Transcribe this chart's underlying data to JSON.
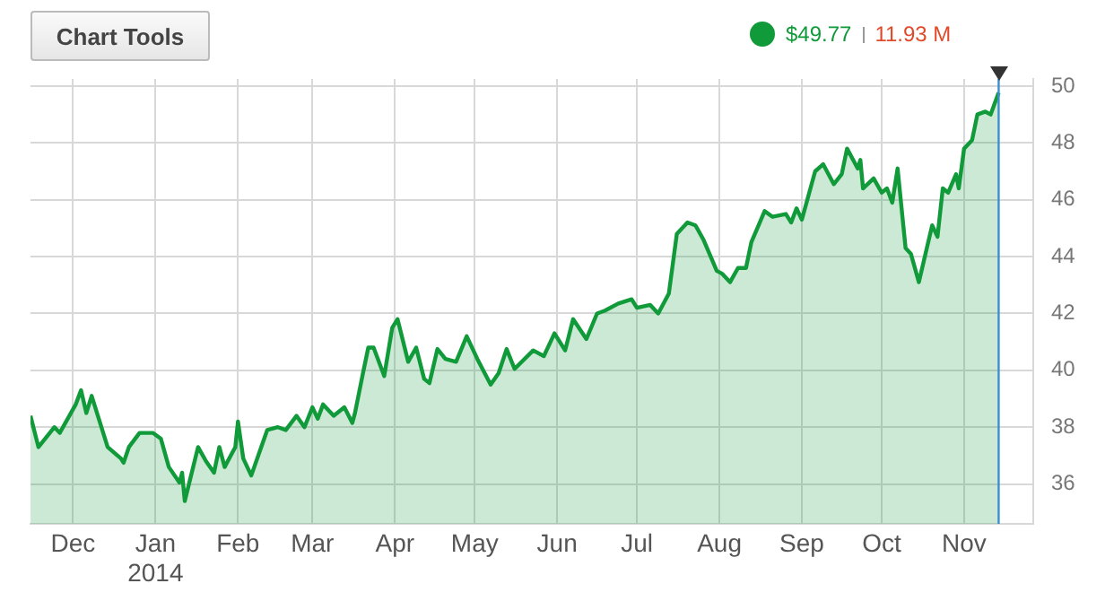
{
  "chart_data": {
    "type": "area",
    "annotations": [
      "Chart Tools",
      "$49.77",
      "11.93 M"
    ],
    "x": [
      "2013-11-15",
      "2013-11-18",
      "2013-11-24",
      "2013-11-26",
      "2013-12-02",
      "2013-12-04",
      "2013-12-06",
      "2013-12-08",
      "2013-12-14",
      "2013-12-19",
      "2013-12-20",
      "2013-12-22",
      "2013-12-26",
      "2013-12-31",
      "2014-01-03",
      "2014-01-06",
      "2014-01-10",
      "2014-01-11",
      "2014-01-12",
      "2014-01-17",
      "2014-01-20",
      "2014-01-23",
      "2014-01-25",
      "2014-01-27",
      "2014-01-31",
      "2014-02-01",
      "2014-02-03",
      "2014-02-06",
      "2014-02-12",
      "2014-02-16",
      "2014-02-19",
      "2014-02-23",
      "2014-02-26",
      "2014-03-01",
      "2014-03-03",
      "2014-03-05",
      "2014-03-09",
      "2014-03-13",
      "2014-03-16",
      "2014-03-17",
      "2014-03-20",
      "2014-03-22",
      "2014-03-24",
      "2014-03-28",
      "2014-03-31",
      "2014-04-02",
      "2014-04-06",
      "2014-04-09",
      "2014-04-12",
      "2014-04-14",
      "2014-04-17",
      "2014-04-20",
      "2014-04-24",
      "2014-04-28",
      "2014-05-02",
      "2014-05-07",
      "2014-05-10",
      "2014-05-13",
      "2014-05-16",
      "2014-05-23",
      "2014-05-27",
      "2014-05-31",
      "2014-06-04",
      "2014-06-07",
      "2014-06-12",
      "2014-06-16",
      "2014-06-19",
      "2014-06-24",
      "2014-06-29",
      "2014-07-01",
      "2014-07-06",
      "2014-07-09",
      "2014-07-13",
      "2014-07-16",
      "2014-07-20",
      "2014-07-23",
      "2014-07-26",
      "2014-07-31",
      "2014-08-02",
      "2014-08-05",
      "2014-08-08",
      "2014-08-11",
      "2014-08-13",
      "2014-08-18",
      "2014-08-21",
      "2014-08-26",
      "2014-08-28",
      "2014-08-30",
      "2014-09-01",
      "2014-09-06",
      "2014-09-09",
      "2014-09-13",
      "2014-09-16",
      "2014-09-18",
      "2014-09-22",
      "2014-09-23",
      "2014-09-24",
      "2014-09-28",
      "2014-10-01",
      "2014-10-03",
      "2014-10-05",
      "2014-10-07",
      "2014-10-10",
      "2014-10-12",
      "2014-10-15",
      "2014-10-18",
      "2014-10-20",
      "2014-10-22",
      "2014-10-24",
      "2014-10-26",
      "2014-10-29",
      "2014-10-30",
      "2014-11-01",
      "2014-11-04",
      "2014-11-06",
      "2014-11-09",
      "2014-11-11",
      "2014-11-14"
    ],
    "series": [
      {
        "color": "#109a3a",
        "values": [
          38.4,
          37.3,
          38.0,
          37.8,
          38.8,
          39.3,
          38.5,
          39.1,
          37.3,
          36.9,
          36.75,
          37.3,
          37.8,
          37.8,
          37.6,
          36.6,
          36.05,
          36.4,
          35.4,
          37.3,
          36.8,
          36.4,
          37.3,
          36.6,
          37.3,
          38.2,
          36.9,
          36.3,
          37.9,
          38.0,
          37.9,
          38.4,
          38.0,
          38.7,
          38.3,
          38.8,
          38.4,
          38.7,
          38.15,
          38.5,
          39.9,
          40.8,
          40.8,
          39.8,
          41.5,
          41.8,
          40.3,
          40.8,
          39.7,
          39.55,
          40.75,
          40.4,
          40.3,
          41.2,
          40.4,
          39.5,
          39.9,
          40.75,
          40.05,
          40.7,
          40.5,
          41.3,
          40.7,
          41.8,
          41.1,
          42.0,
          42.1,
          42.35,
          42.5,
          42.2,
          42.3,
          42.0,
          42.7,
          44.8,
          45.2,
          45.1,
          44.6,
          43.5,
          43.4,
          43.1,
          43.6,
          43.6,
          44.5,
          45.6,
          45.4,
          45.5,
          45.2,
          45.7,
          45.3,
          47.0,
          47.25,
          46.55,
          46.9,
          47.8,
          47.1,
          47.4,
          46.4,
          46.75,
          46.25,
          46.4,
          45.9,
          47.1,
          44.3,
          44.1,
          43.1,
          44.3,
          45.1,
          44.7,
          46.4,
          46.25,
          46.9,
          46.4,
          47.8,
          48.1,
          49.0,
          49.1,
          49.0,
          49.77
        ]
      }
    ],
    "xlim": [
      "2013-11-15",
      "2014-11-27"
    ],
    "xticks": [
      {
        "value": "2013-12-01",
        "label": "Dec"
      },
      {
        "value": "2014-01-01",
        "label": "Jan\n2014"
      },
      {
        "value": "2014-02-01",
        "label": "Feb"
      },
      {
        "value": "2014-03-01",
        "label": "Mar"
      },
      {
        "value": "2014-04-01",
        "label": "Apr"
      },
      {
        "value": "2014-05-01",
        "label": "May"
      },
      {
        "value": "2014-06-01",
        "label": "Jun"
      },
      {
        "value": "2014-07-01",
        "label": "Jul"
      },
      {
        "value": "2014-08-01",
        "label": "Aug"
      },
      {
        "value": "2014-09-01",
        "label": "Sep"
      },
      {
        "value": "2014-10-01",
        "label": "Oct"
      },
      {
        "value": "2014-11-01",
        "label": "Nov"
      }
    ],
    "ylim": [
      34.6,
      50.25
    ],
    "yticks": [
      36,
      38,
      40,
      42,
      44,
      46,
      48,
      50
    ],
    "grid": true,
    "legend": false,
    "marker": "none",
    "ref_lines": [
      {
        "axis": "x",
        "value": "2014-11-14",
        "color": "#3a8fd0"
      }
    ]
  }
}
